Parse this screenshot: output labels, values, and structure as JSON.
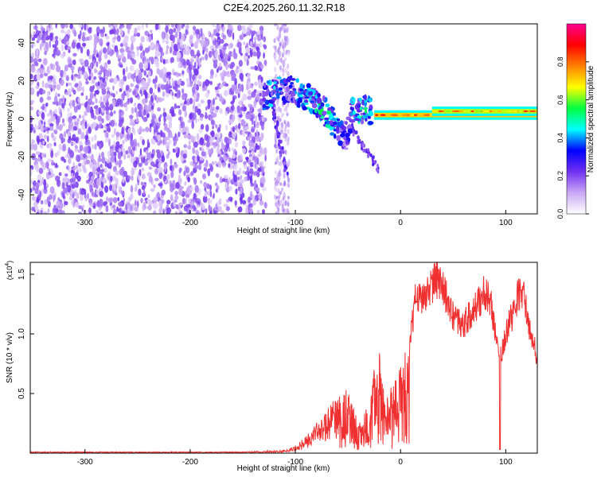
{
  "title": "C2E4.2025.260.11.32.R18",
  "chart_data": [
    {
      "type": "heatmap",
      "name": "spectrogram",
      "xlabel": "Height of straight line (km)",
      "ylabel": "Frequency (Hz)",
      "xlim": [
        -352,
        130
      ],
      "ylim": [
        -50,
        50
      ],
      "x_ticks": [
        -300,
        -200,
        -100,
        0,
        100
      ],
      "x_tick_labels": [
        "-300",
        "-200",
        "-100",
        "0",
        "100"
      ],
      "y_ticks": [
        -40,
        -20,
        0,
        20,
        40
      ],
      "y_tick_labels": [
        "-40",
        "-20",
        "0",
        "20",
        "40"
      ],
      "noise_region_km": [
        -352,
        -128
      ],
      "noise_band_km": [
        -120,
        -106
      ],
      "transition_region_km": [
        -130,
        -25
      ],
      "transition_points": [
        {
          "x": -130,
          "f": 12,
          "a": 0.35
        },
        {
          "x": -120,
          "f": 14,
          "a": 0.4
        },
        {
          "x": -108,
          "f": 16,
          "a": 0.3
        },
        {
          "x": -100,
          "f": 14,
          "a": 0.35
        },
        {
          "x": -92,
          "f": 12,
          "a": 0.45
        },
        {
          "x": -85,
          "f": 10,
          "a": 0.4
        },
        {
          "x": -78,
          "f": 8,
          "a": 0.5
        },
        {
          "x": -70,
          "f": 2,
          "a": 0.45
        },
        {
          "x": -60,
          "f": -4,
          "a": 0.4
        },
        {
          "x": -52,
          "f": -10,
          "a": 0.25
        },
        {
          "x": -45,
          "f": 6,
          "a": 0.4
        },
        {
          "x": -35,
          "f": 5,
          "a": 0.45
        },
        {
          "x": -28,
          "f": 4,
          "a": 0.5
        }
      ],
      "tone_segments": [
        {
          "x0": -25,
          "x1": 130,
          "f": 2,
          "a": 0.95
        },
        {
          "x0": 30,
          "x1": 130,
          "f": 4,
          "a": 0.85
        }
      ],
      "trace_branches": [
        {
          "x0": -122,
          "f0": 8,
          "x1": -108,
          "f1": -30
        },
        {
          "x0": -48,
          "f0": -4,
          "x1": -20,
          "f1": -27
        }
      ],
      "colorbar": {
        "label": "Normalized spectral amplitude",
        "range": [
          0,
          1
        ],
        "ticks": [
          0.0,
          0.2,
          0.4,
          0.6,
          0.8
        ],
        "tick_labels": [
          "0.0",
          "0.2",
          "0.4",
          "0.6",
          "0.8"
        ],
        "colors": [
          "#ffffff",
          "#c9a8f5",
          "#7030f0",
          "#0000ff",
          "#00ffff",
          "#00ff40",
          "#ffff00",
          "#ff8000",
          "#ff0000",
          "#ff0090"
        ]
      }
    },
    {
      "type": "line",
      "name": "snr",
      "xlabel": "Height of straight line (km)",
      "ylabel": "SNR (10 * v/v)",
      "y_multiplier": "(x10",
      "y_multiplier_exp": "4",
      "y_multiplier_close": ")",
      "xlim": [
        -352,
        130
      ],
      "ylim": [
        0,
        1.6
      ],
      "x_ticks": [
        -300,
        -200,
        -100,
        0,
        100
      ],
      "x_tick_labels": [
        "-300",
        "-200",
        "-100",
        "0",
        "100"
      ],
      "y_ticks": [
        0.5,
        1.0,
        1.5
      ],
      "y_tick_labels": [
        "0.5",
        "1.0",
        "1.5"
      ],
      "color": "#f03030",
      "envelope": [
        {
          "x": -352,
          "y": 0.01
        },
        {
          "x": -150,
          "y": 0.01
        },
        {
          "x": -110,
          "y": 0.02
        },
        {
          "x": -100,
          "y": 0.05
        },
        {
          "x": -90,
          "y": 0.12
        },
        {
          "x": -80,
          "y": 0.22
        },
        {
          "x": -70,
          "y": 0.3
        },
        {
          "x": -60,
          "y": 0.42
        },
        {
          "x": -52,
          "y": 0.55
        },
        {
          "x": -45,
          "y": 0.4
        },
        {
          "x": -40,
          "y": 0.25
        },
        {
          "x": -30,
          "y": 0.4
        },
        {
          "x": -25,
          "y": 0.7
        },
        {
          "x": -20,
          "y": 0.85
        },
        {
          "x": -15,
          "y": 0.5
        },
        {
          "x": -8,
          "y": 0.55
        },
        {
          "x": 0,
          "y": 0.7
        },
        {
          "x": 8,
          "y": 0.9
        },
        {
          "x": 14,
          "y": 1.35
        },
        {
          "x": 20,
          "y": 1.35
        },
        {
          "x": 28,
          "y": 1.45
        },
        {
          "x": 35,
          "y": 1.52
        },
        {
          "x": 42,
          "y": 1.4
        },
        {
          "x": 50,
          "y": 1.2
        },
        {
          "x": 58,
          "y": 1.1
        },
        {
          "x": 66,
          "y": 1.2
        },
        {
          "x": 74,
          "y": 1.3
        },
        {
          "x": 80,
          "y": 1.42
        },
        {
          "x": 86,
          "y": 1.3
        },
        {
          "x": 92,
          "y": 0.95
        },
        {
          "x": 95,
          "y": 0.85
        },
        {
          "x": 100,
          "y": 1.05
        },
        {
          "x": 106,
          "y": 1.2
        },
        {
          "x": 112,
          "y": 1.4
        },
        {
          "x": 118,
          "y": 1.35
        },
        {
          "x": 124,
          "y": 1.0
        },
        {
          "x": 130,
          "y": 0.85
        }
      ],
      "dips": [
        {
          "x": 94.5,
          "y": 0.03
        }
      ]
    }
  ]
}
